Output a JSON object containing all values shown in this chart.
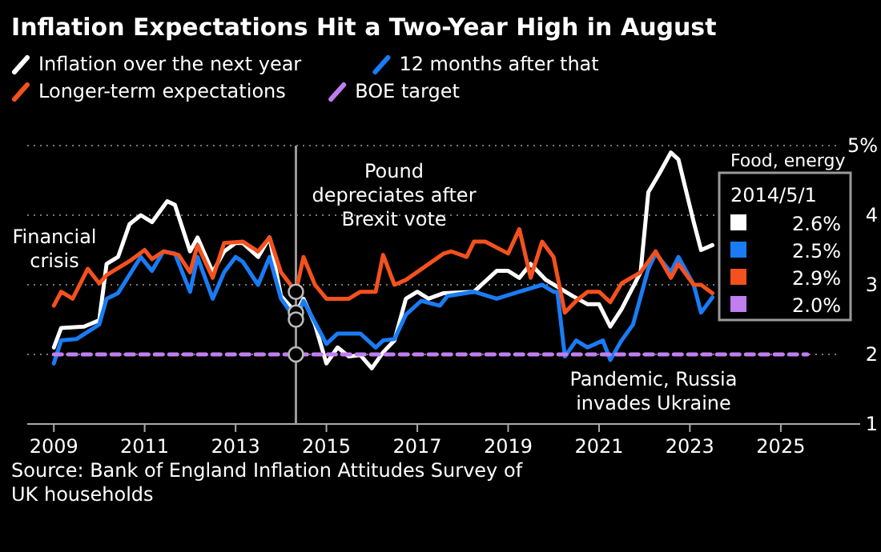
{
  "chart_data": {
    "type": "line",
    "title": "Inflation Expectations Hit a Two-Year High in August",
    "xlim": [
      "2008-06",
      "2026-10"
    ],
    "xticks": [
      {
        "value": "2009-01",
        "label": "2009"
      },
      {
        "value": "2011-01",
        "label": "2011"
      },
      {
        "value": "2013-01",
        "label": "2013"
      },
      {
        "value": "2015-01",
        "label": "2015"
      },
      {
        "value": "2017-01",
        "label": "2017"
      },
      {
        "value": "2019-01",
        "label": "2019"
      },
      {
        "value": "2021-01",
        "label": "2021"
      },
      {
        "value": "2023-01",
        "label": "2023"
      },
      {
        "value": "2025-01",
        "label": "2025"
      }
    ],
    "ylim": [
      1,
      5
    ],
    "yticks": [
      1,
      2,
      3,
      4,
      {
        "value": 5,
        "label": "5%"
      }
    ],
    "grid": "y",
    "legend": "top",
    "series": [
      {
        "name": "Inflation over the next year",
        "color": "#ffffff",
        "x": [
          "2009-01",
          "2009-03",
          "2009-09",
          "2010-01",
          "2010-03",
          "2010-06",
          "2010-09",
          "2010-12",
          "2011-03",
          "2011-07",
          "2011-09",
          "2012-01",
          "2012-03",
          "2012-07",
          "2012-10",
          "2013-01",
          "2013-03",
          "2013-07",
          "2013-10",
          "2014-01",
          "2014-05",
          "2014-07",
          "2014-10",
          "2015-01",
          "2015-04",
          "2015-07",
          "2015-10",
          "2016-01",
          "2016-04",
          "2016-07",
          "2016-10",
          "2017-01",
          "2017-04",
          "2017-08",
          "2018-04",
          "2018-10",
          "2019-01",
          "2019-04",
          "2019-07",
          "2019-11",
          "2020-06",
          "2020-10",
          "2021-01",
          "2021-04",
          "2021-07",
          "2021-12",
          "2022-02",
          "2022-05",
          "2022-08",
          "2022-10",
          "2023-02",
          "2023-04",
          "2023-07"
        ],
        "values": [
          2.1,
          2.38,
          2.4,
          2.49,
          3.3,
          3.4,
          3.87,
          4.0,
          3.9,
          4.2,
          4.15,
          3.48,
          3.68,
          3.18,
          3.48,
          3.6,
          3.6,
          3.4,
          3.68,
          2.84,
          2.6,
          2.8,
          2.43,
          1.87,
          2.1,
          1.97,
          1.99,
          1.8,
          2.03,
          2.2,
          2.8,
          2.9,
          2.8,
          2.88,
          2.9,
          3.2,
          3.2,
          3.1,
          3.3,
          3.07,
          2.84,
          2.72,
          2.72,
          2.4,
          2.65,
          3.18,
          4.33,
          4.6,
          4.9,
          4.8,
          3.9,
          3.5,
          3.57
        ]
      },
      {
        "name": "12 months after that",
        "color": "#1a7cf5",
        "x": [
          "2009-01",
          "2009-03",
          "2009-07",
          "2010-01",
          "2010-03",
          "2010-06",
          "2010-12",
          "2011-03",
          "2011-06",
          "2011-09",
          "2012-01",
          "2012-03",
          "2012-07",
          "2012-10",
          "2013-01",
          "2013-03",
          "2013-07",
          "2013-10",
          "2014-01",
          "2014-05",
          "2014-07",
          "2015-01",
          "2015-04",
          "2015-10",
          "2016-02",
          "2016-04",
          "2016-07",
          "2016-10",
          "2017-02",
          "2017-07",
          "2017-09",
          "2018-04",
          "2018-10",
          "2019-04",
          "2019-10",
          "2020-01",
          "2020-02",
          "2020-04",
          "2020-07",
          "2020-10",
          "2021-02",
          "2021-04",
          "2021-07",
          "2021-10",
          "2022-02",
          "2022-04",
          "2022-08",
          "2022-10",
          "2023-02",
          "2023-04",
          "2023-07"
        ],
        "values": [
          1.87,
          2.2,
          2.22,
          2.43,
          2.8,
          2.88,
          3.4,
          3.2,
          3.48,
          3.45,
          2.9,
          3.4,
          2.8,
          3.18,
          3.4,
          3.33,
          3.0,
          3.4,
          2.8,
          2.5,
          2.77,
          2.15,
          2.3,
          2.3,
          2.1,
          2.2,
          2.22,
          2.57,
          2.77,
          2.7,
          2.84,
          2.9,
          2.8,
          2.9,
          3.0,
          2.9,
          2.9,
          1.97,
          2.2,
          2.1,
          2.2,
          1.92,
          2.2,
          2.43,
          3.23,
          3.45,
          3.18,
          3.4,
          3.0,
          2.6,
          2.82
        ]
      },
      {
        "name": "Longer-term expectations",
        "color": "#f4511e",
        "x": [
          "2009-01",
          "2009-03",
          "2009-06",
          "2009-10",
          "2010-01",
          "2010-03",
          "2010-09",
          "2011-01",
          "2011-03",
          "2011-06",
          "2011-10",
          "2012-01",
          "2012-03",
          "2012-07",
          "2012-10",
          "2013-03",
          "2013-07",
          "2013-10",
          "2014-01",
          "2014-05",
          "2014-07",
          "2014-10",
          "2015-01",
          "2015-07",
          "2015-10",
          "2016-02",
          "2016-04",
          "2016-07",
          "2016-10",
          "2017-08",
          "2017-10",
          "2018-02",
          "2018-04",
          "2018-07",
          "2019-01",
          "2019-04",
          "2019-07",
          "2019-10",
          "2020-01",
          "2020-04",
          "2020-07",
          "2020-10",
          "2021-01",
          "2021-04",
          "2021-07",
          "2021-12",
          "2022-04",
          "2022-08",
          "2022-10",
          "2023-02",
          "2023-04",
          "2023-07"
        ],
        "values": [
          2.7,
          2.9,
          2.8,
          3.23,
          3.02,
          3.14,
          3.34,
          3.5,
          3.37,
          3.48,
          3.43,
          3.18,
          3.57,
          3.1,
          3.6,
          3.62,
          3.48,
          3.68,
          3.18,
          2.9,
          3.4,
          3.0,
          2.8,
          2.8,
          2.9,
          2.9,
          3.43,
          3.0,
          3.07,
          3.45,
          3.48,
          3.4,
          3.62,
          3.62,
          3.45,
          3.8,
          3.1,
          3.62,
          3.4,
          2.6,
          2.77,
          2.9,
          2.9,
          2.75,
          3.02,
          3.18,
          3.48,
          3.1,
          3.3,
          3.0,
          3.0,
          2.88
        ]
      },
      {
        "name": "BOE target",
        "color": "#c07ef0",
        "line_style": "dashed",
        "x": [
          "2009-01",
          "2014-05",
          "2025-08"
        ],
        "values": [
          2.0,
          2.0,
          2.0
        ]
      }
    ],
    "ref_lines": [
      {
        "axis": "x",
        "value": "2014-05-01",
        "color": "#9a9a9a"
      }
    ],
    "annotations": [
      "Financial crisis",
      "Pound depreciates after Brexit vote",
      "Pandemic, Russia invades Ukraine",
      "Food, energy",
      "2014/5/1",
      "2.6%",
      "2.5%",
      "2.9%",
      "2.0%",
      "Source: Bank of England Inflation Attitudes Survey of UK households"
    ]
  }
}
